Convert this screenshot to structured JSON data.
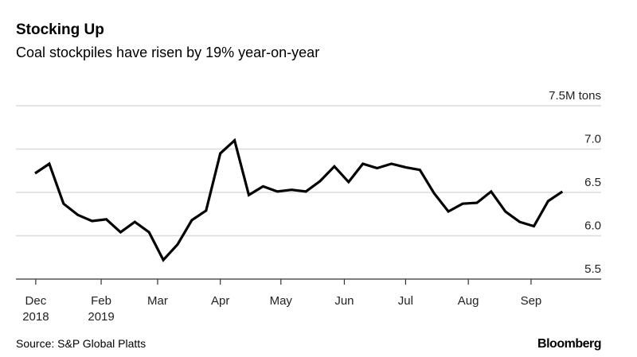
{
  "title": "Stocking Up",
  "subtitle": "Coal stockpiles have risen by 19% year-on-year",
  "source": "Source: S&P Global Platts",
  "logo": "Bloomberg",
  "chart_data": {
    "type": "line",
    "title": "Stocking Up",
    "subtitle": "Coal stockpiles have risen by 19% year-on-year",
    "unit_label": "7.5M tons",
    "ylim": [
      5.5,
      7.5
    ],
    "yticks": [
      {
        "value": 7.5,
        "label": "7.5M tons"
      },
      {
        "value": 7.0,
        "label": "7.0"
      },
      {
        "value": 6.5,
        "label": "6.5"
      },
      {
        "value": 6.0,
        "label": "6.0"
      },
      {
        "value": 5.5,
        "label": "5.5"
      }
    ],
    "xticks": [
      {
        "label": "Dec",
        "sublabel": "2018"
      },
      {
        "label": "Feb",
        "sublabel": "2019"
      },
      {
        "label": "Mar",
        "sublabel": ""
      },
      {
        "label": "Apr",
        "sublabel": ""
      },
      {
        "label": "May",
        "sublabel": ""
      },
      {
        "label": "Jun",
        "sublabel": ""
      },
      {
        "label": "Jul",
        "sublabel": ""
      },
      {
        "label": "Aug",
        "sublabel": ""
      },
      {
        "label": "Sep",
        "sublabel": ""
      }
    ],
    "grid": true,
    "line_color": "#000000",
    "values": [
      6.72,
      6.83,
      6.37,
      6.24,
      6.17,
      6.19,
      6.04,
      6.16,
      6.04,
      5.72,
      5.9,
      6.18,
      6.29,
      6.95,
      7.1,
      6.47,
      6.57,
      6.51,
      6.53,
      6.51,
      6.63,
      6.8,
      6.62,
      6.83,
      6.78,
      6.83,
      6.79,
      6.76,
      6.49,
      6.28,
      6.37,
      6.38,
      6.51,
      6.28,
      6.16,
      6.11,
      6.4,
      6.51
    ]
  }
}
